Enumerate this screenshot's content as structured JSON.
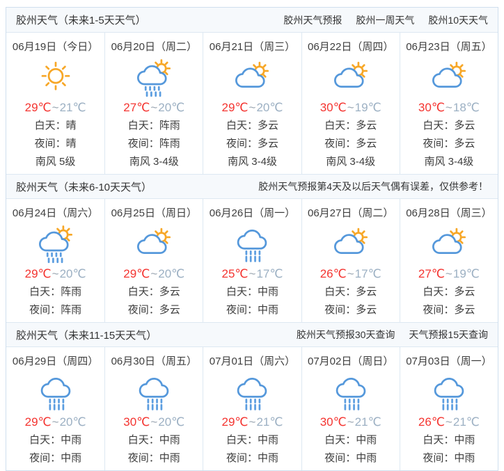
{
  "page": {
    "temp_separator": "~",
    "colors": {
      "temp_high": "#f43430",
      "temp_low": "#9cb0c3",
      "sun": "#f7a727",
      "cloud": "#5598db",
      "rain": "#5b9de0",
      "border": "#dde8f2",
      "header_bg": "#f6f9fc",
      "text": "#3d3d3d",
      "link": "#333333"
    }
  },
  "sections": [
    {
      "title": "胶州天气（未来1-5天天气）",
      "right_items": [
        {
          "label": "胶州天气预报",
          "link": true
        },
        {
          "label": "胶州一周天气",
          "link": true
        },
        {
          "label": "胶州10天天气",
          "link": true
        }
      ],
      "cells": [
        {
          "date": "06月19日（今日）",
          "icon": "sunny",
          "high": "29℃",
          "low": "21℃",
          "details": [
            "白天：晴",
            "夜间：晴",
            "南风 5级"
          ]
        },
        {
          "date": "06月20日（周二）",
          "icon": "shower-sun",
          "high": "27℃",
          "low": "20℃",
          "details": [
            "白天：阵雨",
            "夜间：阵雨",
            "南风 3-4级"
          ]
        },
        {
          "date": "06月21日（周三）",
          "icon": "cloudy-sun",
          "high": "29℃",
          "low": "20℃",
          "details": [
            "白天：多云",
            "夜间：多云",
            "南风 3-4级"
          ]
        },
        {
          "date": "06月22日（周四）",
          "icon": "cloudy-sun",
          "high": "30℃",
          "low": "19℃",
          "details": [
            "白天：多云",
            "夜间：多云",
            "南风 3-4级"
          ]
        },
        {
          "date": "06月23日（周五）",
          "icon": "cloudy-sun",
          "high": "30℃",
          "low": "18℃",
          "details": [
            "白天：多云",
            "夜间：多云",
            "南风 3-4级"
          ]
        }
      ]
    },
    {
      "title": "胶州天气（未来6-10天天气）",
      "right_items": [
        {
          "label": "胶州天气预报第4天及以后天气偶有误差，仅供参考！",
          "link": false
        }
      ],
      "cells": [
        {
          "date": "06月24日（周六）",
          "icon": "shower-sun",
          "high": "29℃",
          "low": "20℃",
          "details": [
            "白天：阵雨",
            "夜间：阵雨"
          ]
        },
        {
          "date": "06月25日（周日）",
          "icon": "cloudy-sun",
          "high": "29℃",
          "low": "20℃",
          "details": [
            "白天：多云",
            "夜间：多云"
          ]
        },
        {
          "date": "06月26日（周一）",
          "icon": "rain",
          "high": "25℃",
          "low": "17℃",
          "details": [
            "白天：中雨",
            "夜间：中雨"
          ]
        },
        {
          "date": "06月27日（周二）",
          "icon": "cloudy-sun",
          "high": "26℃",
          "low": "17℃",
          "details": [
            "白天：多云",
            "夜间：多云"
          ]
        },
        {
          "date": "06月28日（周三）",
          "icon": "cloudy-sun",
          "high": "27℃",
          "low": "19℃",
          "details": [
            "白天：多云",
            "夜间：多云"
          ]
        }
      ]
    },
    {
      "title": "胶州天气（未来11-15天天气）",
      "right_items": [
        {
          "label": "胶州天气预报30天查询",
          "link": true
        },
        {
          "label": "天气预报15天查询",
          "link": true
        }
      ],
      "cells": [
        {
          "date": "06月29日（周四）",
          "icon": "rain",
          "high": "29℃",
          "low": "20℃",
          "details": [
            "白天：中雨",
            "夜间：中雨"
          ]
        },
        {
          "date": "06月30日（周五）",
          "icon": "rain",
          "high": "30℃",
          "low": "20℃",
          "details": [
            "白天：中雨",
            "夜间：中雨"
          ]
        },
        {
          "date": "07月01日（周六）",
          "icon": "rain",
          "high": "29℃",
          "low": "21℃",
          "details": [
            "白天：中雨",
            "夜间：中雨"
          ]
        },
        {
          "date": "07月02日（周日）",
          "icon": "rain",
          "high": "30℃",
          "low": "21℃",
          "details": [
            "白天：中雨",
            "夜间：中雨"
          ]
        },
        {
          "date": "07月03日（周一）",
          "icon": "rain",
          "high": "26℃",
          "low": "21℃",
          "details": [
            "白天：中雨",
            "夜间：中雨"
          ]
        }
      ]
    }
  ]
}
